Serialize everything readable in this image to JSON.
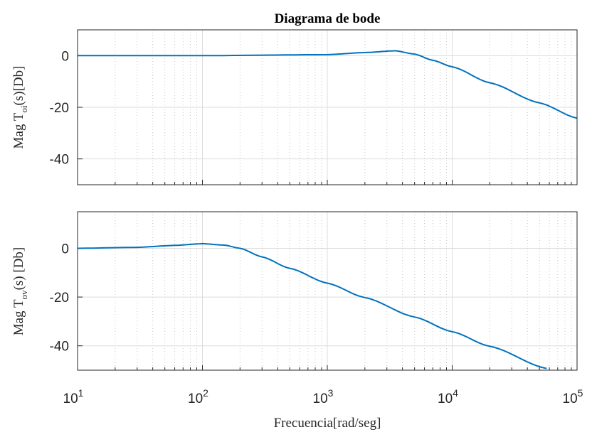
{
  "chart_data": [
    {
      "type": "line",
      "title": "Diagrama de bode",
      "xlabel": "",
      "ylabel_parts": [
        "Mag T",
        "oi",
        "(s)[Db]"
      ],
      "xscale": "log",
      "xlim": [
        10,
        100000
      ],
      "ylim": [
        -50,
        10
      ],
      "yticks": [
        "0",
        "-20",
        "-40"
      ],
      "grid": true,
      "series": [
        {
          "color": "#0072BD",
          "x": [
            10,
            100,
            1000,
            2000,
            3500,
            5000,
            7000,
            10000,
            20000,
            50000,
            100000
          ],
          "y": [
            0,
            0,
            0.4,
            1.2,
            1.9,
            0.6,
            -1.8,
            -4.3,
            -10.5,
            -18.3,
            -24.2
          ]
        }
      ]
    },
    {
      "type": "line",
      "title": "",
      "xlabel": "Frecuencia[rad/seg]",
      "ylabel_parts": [
        "Mag T",
        "ov",
        "(s) [Db]"
      ],
      "xscale": "log",
      "xlim": [
        10,
        100000
      ],
      "ylim": [
        -50,
        15
      ],
      "yticks": [
        "0",
        "-20",
        "-40"
      ],
      "xticks": [
        {
          "base": "10",
          "exp": "1"
        },
        {
          "base": "10",
          "exp": "2"
        },
        {
          "base": "10",
          "exp": "3"
        },
        {
          "base": "10",
          "exp": "4"
        },
        {
          "base": "10",
          "exp": "5"
        }
      ],
      "grid": true,
      "series": [
        {
          "color": "#0072BD",
          "x": [
            10,
            30,
            60,
            100,
            150,
            200,
            300,
            500,
            1000,
            2000,
            5000,
            10000,
            20000,
            57000
          ],
          "y": [
            0,
            0.4,
            1.2,
            1.9,
            1.3,
            0,
            -3.5,
            -8.2,
            -14.3,
            -20.2,
            -28.2,
            -34.2,
            -40.2,
            -49.3
          ]
        }
      ]
    }
  ]
}
